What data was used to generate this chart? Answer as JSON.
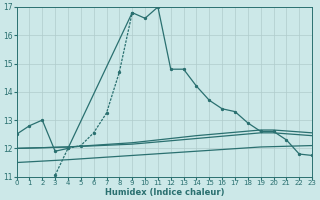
{
  "xlabel": "Humidex (Indice chaleur)",
  "bg_color": "#cce8e8",
  "line_color": "#2a7070",
  "grid_color": "#b0cccc",
  "xlim": [
    0,
    23
  ],
  "ylim": [
    11,
    17
  ],
  "yticks": [
    11,
    12,
    13,
    14,
    15,
    16,
    17
  ],
  "xticks": [
    0,
    1,
    2,
    3,
    4,
    5,
    6,
    7,
    8,
    9,
    10,
    11,
    12,
    13,
    14,
    15,
    16,
    17,
    18,
    19,
    20,
    21,
    22,
    23
  ],
  "line1_x": [
    0,
    1,
    2,
    3,
    4,
    9,
    10,
    11,
    12,
    13,
    14,
    15,
    16,
    17,
    18,
    19,
    20,
    21,
    22,
    23
  ],
  "line1_y": [
    12.5,
    12.8,
    13.0,
    11.9,
    12.0,
    16.8,
    16.6,
    17.0,
    14.8,
    14.8,
    14.2,
    13.7,
    13.4,
    13.3,
    12.9,
    12.6,
    12.6,
    12.3,
    11.8,
    11.75
  ],
  "line2_x": [
    3,
    4,
    5,
    6,
    7,
    8,
    9
  ],
  "line2_y": [
    11.05,
    12.0,
    12.1,
    12.55,
    13.25,
    14.7,
    16.8
  ],
  "line3_x": [
    0,
    4,
    9,
    14,
    19,
    20,
    23
  ],
  "line3_y": [
    12.0,
    12.05,
    12.2,
    12.45,
    12.65,
    12.65,
    12.55
  ],
  "line3b_x": [
    0,
    4,
    9,
    14,
    19,
    20,
    23
  ],
  "line3b_y": [
    12.0,
    12.05,
    12.15,
    12.35,
    12.55,
    12.55,
    12.45
  ],
  "line4_x": [
    0,
    4,
    9,
    14,
    19,
    23
  ],
  "line4_y": [
    11.5,
    11.6,
    11.75,
    11.9,
    12.05,
    12.1
  ]
}
